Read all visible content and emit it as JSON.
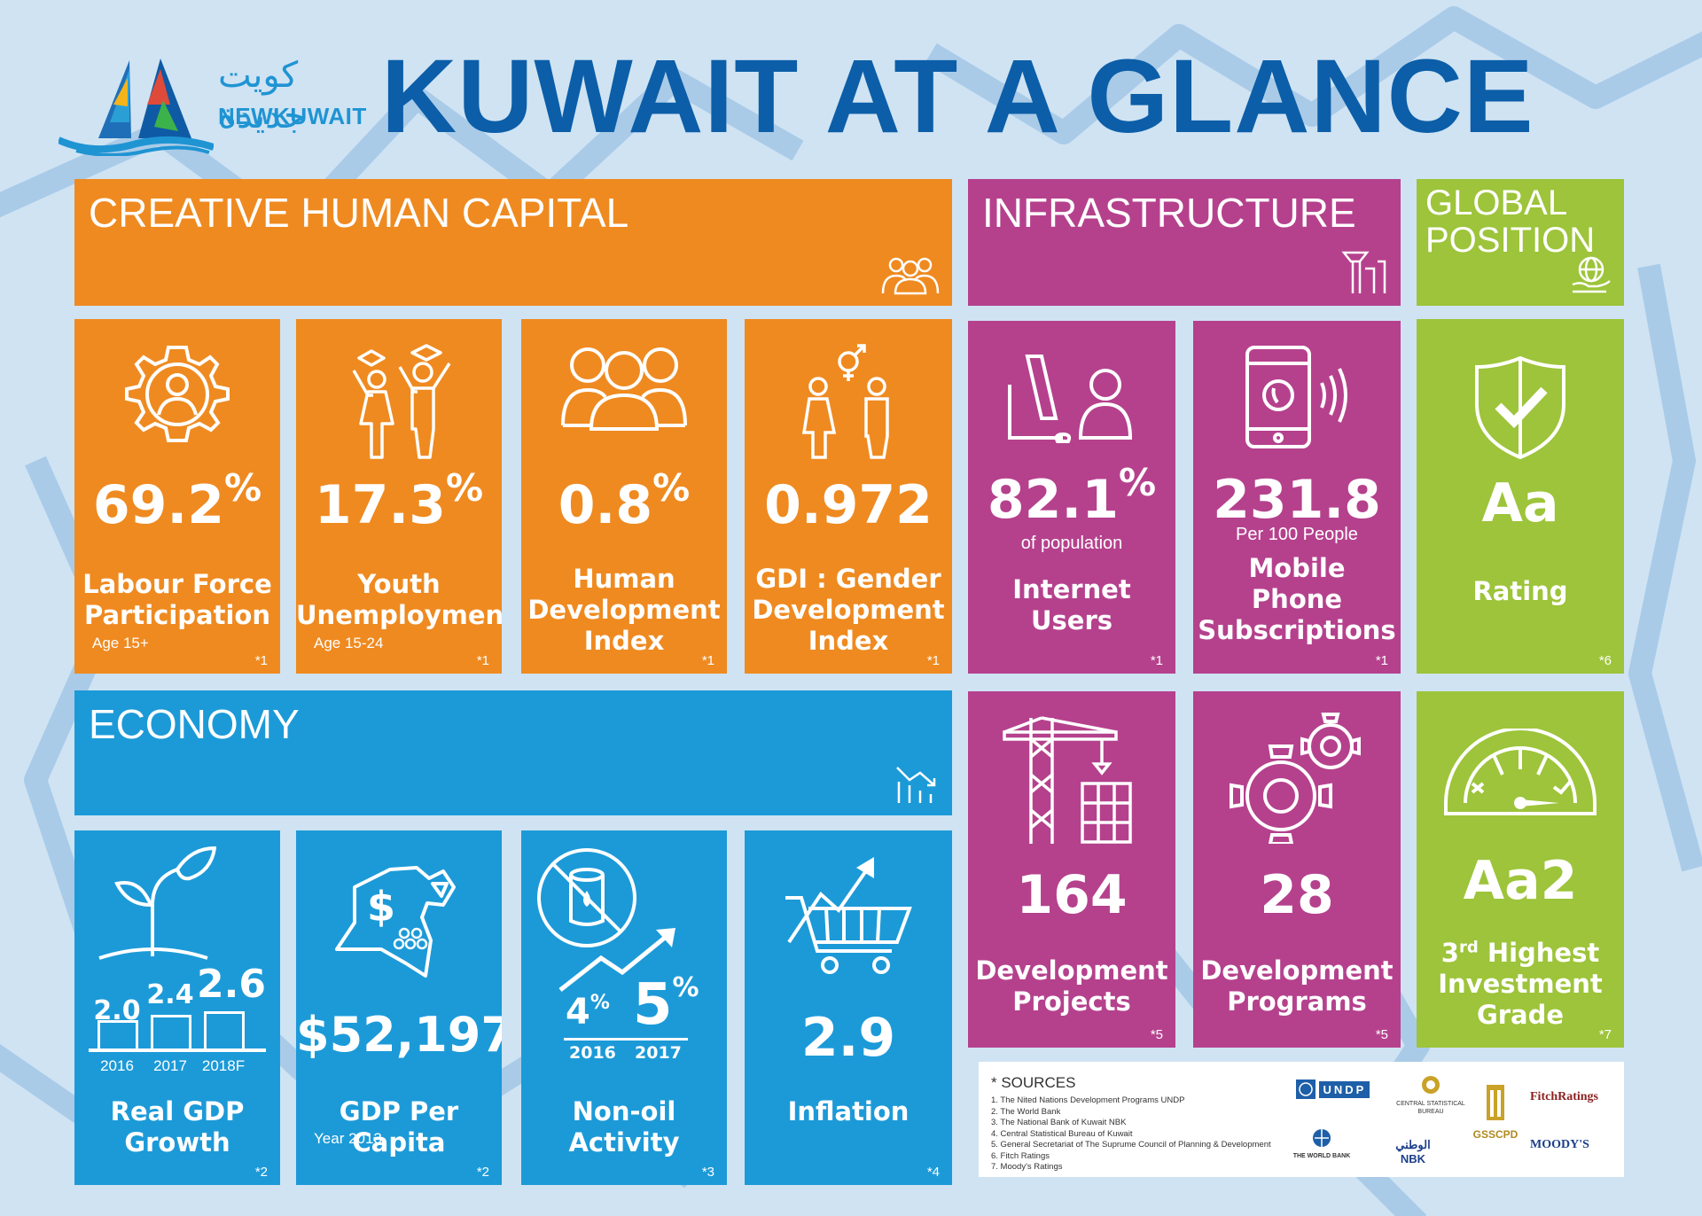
{
  "header": {
    "logo_arabic": "كويت جديدة",
    "logo_english": "NEWKUWAIT",
    "title": "KUWAIT AT A GLANCE"
  },
  "colors": {
    "creative": "#ef8a20",
    "infrastructure": "#b5418d",
    "global": "#9dc43a",
    "economy": "#1c9ad8",
    "title": "#0c5ea8"
  },
  "sections": {
    "creative": {
      "title": "CREATIVE HUMAN CAPITAL",
      "icon": "people-group-icon"
    },
    "infrastructure": {
      "title": "INFRASTRUCTURE",
      "icon": "infrastructure-icon"
    },
    "global": {
      "title_line1": "GLOBAL",
      "title_line2": "POSITION",
      "icon": "globe-hand-icon"
    },
    "economy": {
      "title": "ECONOMY",
      "icon": "chart-down-icon"
    }
  },
  "cards": {
    "labour": {
      "value": "69.2",
      "unit": "%",
      "label1": "Labour Force",
      "label2": "Participation",
      "sub": "Age 15+",
      "source": "*1",
      "icon": "gear-person-icon"
    },
    "youth": {
      "value": "17.3",
      "unit": "%",
      "label1": "Youth",
      "label2": "Unemployment",
      "sub": "Age 15-24",
      "source": "*1",
      "icon": "graduates-icon"
    },
    "hdi": {
      "value": "0.8",
      "unit": "%",
      "label1": "Human",
      "label2": "Development",
      "label3": "Index",
      "source": "*1",
      "icon": "three-people-icon"
    },
    "gdi": {
      "value": "0.972",
      "label1": "GDI : Gender",
      "label2": "Development",
      "label3": "Index",
      "source": "*1",
      "icon": "gender-icon"
    },
    "internet": {
      "value": "82.1",
      "unit": "%",
      "under": "of population",
      "label1": "Internet",
      "label2": "Users",
      "source": "*1",
      "icon": "laptop-user-icon"
    },
    "mobile": {
      "value": "231.8",
      "under": "Per 100 People",
      "label1": "Mobile",
      "label2": "Phone",
      "label3": "Subscriptions",
      "source": "*1",
      "icon": "mobile-phone-icon"
    },
    "rating": {
      "value": "Aa",
      "label1": "Rating",
      "source": "*6",
      "icon": "shield-check-icon"
    },
    "projects": {
      "value": "164",
      "label1": "Development",
      "label2": "Projects",
      "source": "*5",
      "icon": "crane-icon"
    },
    "programs": {
      "value": "28",
      "label1": "Development",
      "label2": "Programs",
      "source": "*5",
      "icon": "gears-icon"
    },
    "invest": {
      "value": "Aa2",
      "label_rank": "3",
      "label_sup": "rd",
      "label1_rest": " Highest",
      "label2": "Investment",
      "label3": "Grade",
      "source": "*7",
      "icon": "gauge-icon"
    },
    "gdp_growth": {
      "label1": "Real GDP",
      "label2": "Growth",
      "source": "*2",
      "icon": "plant-icon",
      "bars": [
        {
          "year": "2016",
          "value": 2.0,
          "text": "2.0"
        },
        {
          "year": "2017",
          "value": 2.4,
          "text": "2.4"
        },
        {
          "year": "2018F",
          "value": 2.6,
          "text": "2.6"
        }
      ]
    },
    "gdp_capita": {
      "value": "$52,197",
      "label1": "GDP Per Capita",
      "sub": "Year 2013",
      "source": "*2",
      "icon": "kuwait-map-dollar-icon"
    },
    "nonoil": {
      "v2016": "4",
      "v2017": "5",
      "unit": "%",
      "y2016": "2016",
      "y2017": "2017",
      "label1": "Non-oil",
      "label2": "Activity",
      "source": "*3",
      "icon": "no-oil-barrel-icon"
    },
    "inflation": {
      "value": "2.9",
      "label1": "Inflation",
      "source": "*4",
      "icon": "cart-arrow-icon"
    }
  },
  "sources": {
    "heading": "* SOURCES",
    "items": [
      "1. The Nited Nations Development Programs UNDP",
      "2. The World Bank",
      "3. The National Bank of Kuwait NBK",
      "4. Central Statistical Bureau of Kuwait",
      "5. General Secretariat of The Suprume Council of Planning & Development",
      "6. Fitch Ratings",
      "7. Moody's Ratings"
    ],
    "logos": {
      "undp": "UNDP",
      "csb": "CENTRAL STATISTICAL BUREAU",
      "gsscpd": "GSSCPD",
      "fitch": "FitchRatings",
      "worldbank": "THE WORLD BANK",
      "nbk": "NBK",
      "nbk_ar": "الوطني",
      "moodys": "MOODY'S"
    }
  }
}
